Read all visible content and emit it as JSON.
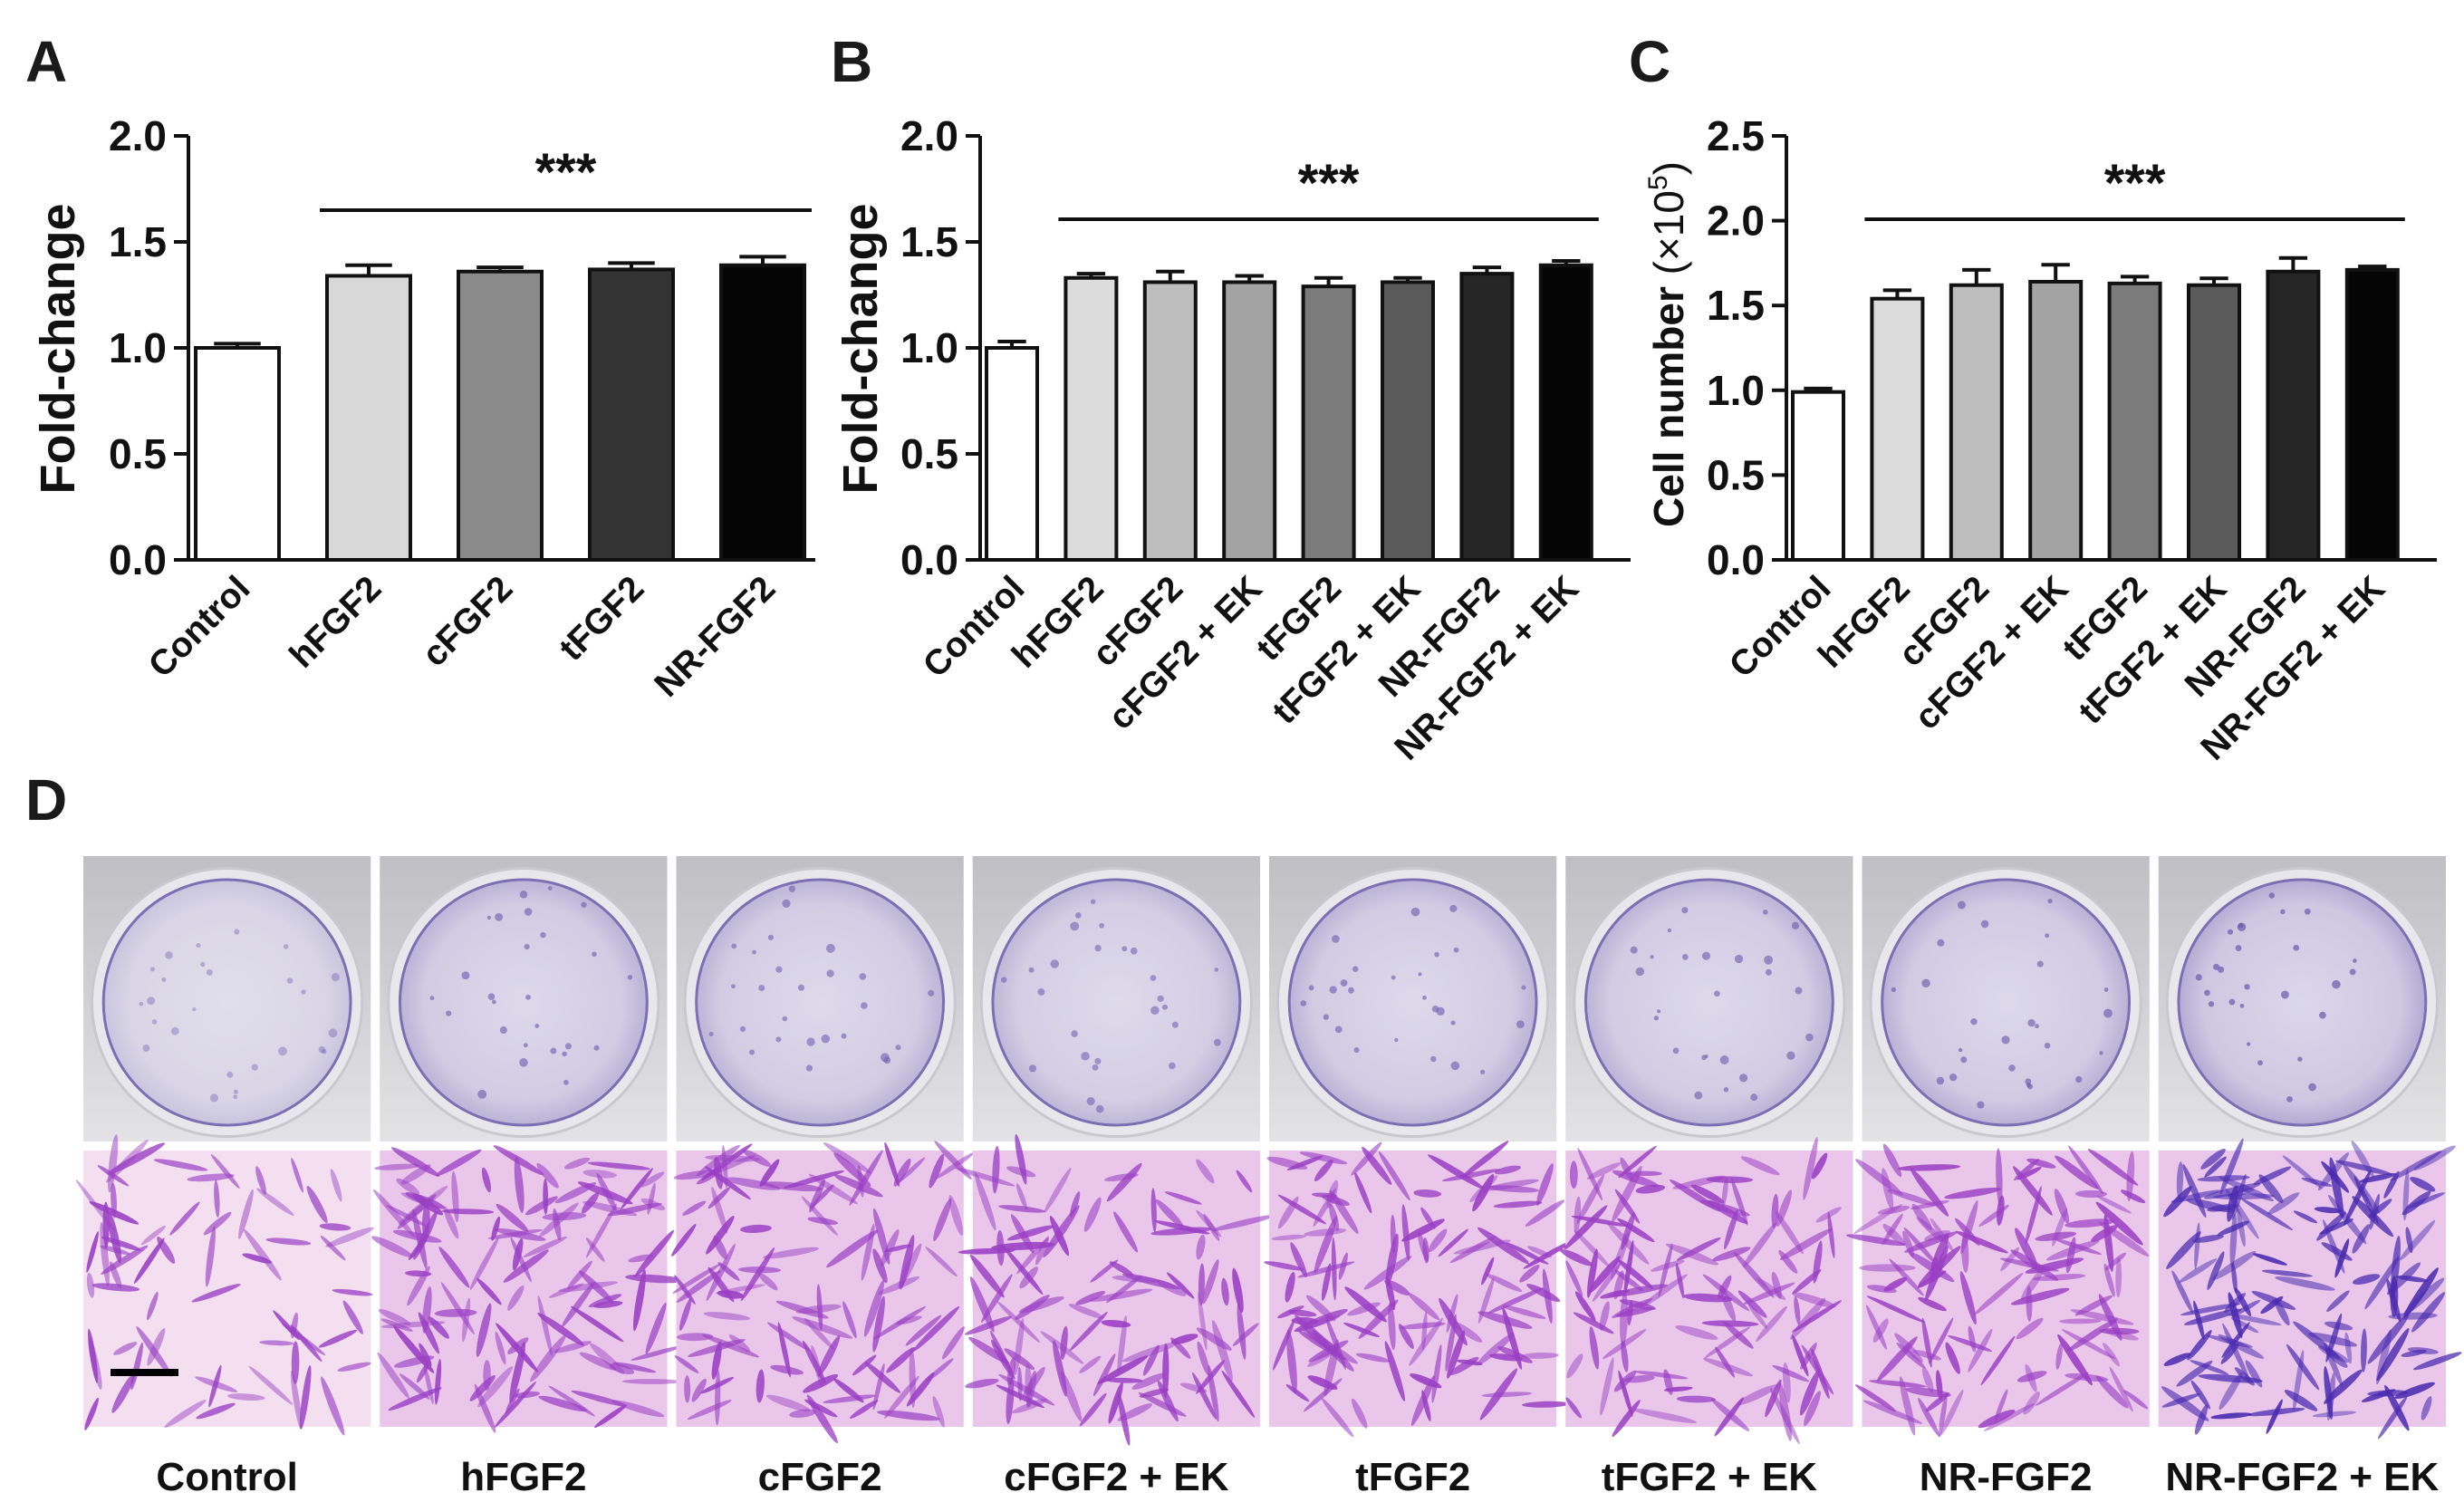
{
  "panels": {
    "labels": [
      "A",
      "B",
      "C",
      "D"
    ]
  },
  "chart_data": [
    {
      "type": "bar",
      "panel": "A",
      "ylabel": "Fold-change",
      "ylim": [
        0,
        2.0
      ],
      "yticks": [
        "0.0",
        "0.5",
        "1.0",
        "1.5",
        "2.0"
      ],
      "categories": [
        "Control",
        "hFGF2",
        "cFGF2",
        "tFGF2",
        "NR-FGF2"
      ],
      "values": [
        1.0,
        1.34,
        1.36,
        1.37,
        1.39
      ],
      "errors": [
        0.02,
        0.05,
        0.02,
        0.03,
        0.04
      ],
      "bar_colors": [
        "#ffffff",
        "#d8d8d8",
        "#8a8a8a",
        "#333333",
        "#050505"
      ],
      "significance": "***",
      "significance_span": [
        1,
        4
      ]
    },
    {
      "type": "bar",
      "panel": "B",
      "ylabel": "Fold-change",
      "ylim": [
        0,
        2.0
      ],
      "yticks": [
        "0.0",
        "0.5",
        "1.0",
        "1.5",
        "2.0"
      ],
      "categories": [
        "Control",
        "hFGF2",
        "cFGF2",
        "cFGF2 + EK",
        "tFGF2",
        "tFGF2 + EK",
        "NR-FGF2",
        "NR-FGF2 + EK"
      ],
      "values": [
        1.0,
        1.33,
        1.31,
        1.31,
        1.29,
        1.31,
        1.35,
        1.39
      ],
      "errors": [
        0.03,
        0.02,
        0.05,
        0.03,
        0.04,
        0.02,
        0.03,
        0.02
      ],
      "bar_colors": [
        "#ffffff",
        "#dcdcdc",
        "#bdbdbd",
        "#a3a3a3",
        "#7b7b7b",
        "#5a5a5a",
        "#262626",
        "#050505"
      ],
      "significance": "***",
      "significance_span": [
        1,
        7
      ]
    },
    {
      "type": "bar",
      "panel": "C",
      "ylabel": "Cell number",
      "ylabel_unit_prefix": "×10",
      "ylabel_unit_exp": "5",
      "ylim": [
        0,
        2.5
      ],
      "yticks": [
        "0.0",
        "0.5",
        "1.0",
        "1.5",
        "2.0",
        "2.5"
      ],
      "categories": [
        "Control",
        "hFGF2",
        "cFGF2",
        "cFGF2 + EK",
        "tFGF2",
        "tFGF2 + EK",
        "NR-FGF2",
        "NR-FGF2 + EK"
      ],
      "values": [
        0.99,
        1.54,
        1.62,
        1.64,
        1.63,
        1.62,
        1.7,
        1.71
      ],
      "errors": [
        0.02,
        0.05,
        0.09,
        0.1,
        0.04,
        0.04,
        0.08,
        0.02
      ],
      "bar_colors": [
        "#ffffff",
        "#dcdcdc",
        "#bdbdbd",
        "#a3a3a3",
        "#7b7b7b",
        "#5a5a5a",
        "#262626",
        "#050505"
      ],
      "significance": "***",
      "significance_span": [
        1,
        7
      ]
    }
  ],
  "panel_d": {
    "labels": [
      "Control",
      "hFGF2",
      "cFGF2",
      "cFGF2 + EK",
      "tFGF2",
      "tFGF2 + EK",
      "NR-FGF2",
      "NR-FGF2 + EK"
    ],
    "stain_density": [
      0.25,
      0.7,
      0.65,
      0.6,
      0.7,
      0.7,
      0.75,
      0.9
    ]
  }
}
